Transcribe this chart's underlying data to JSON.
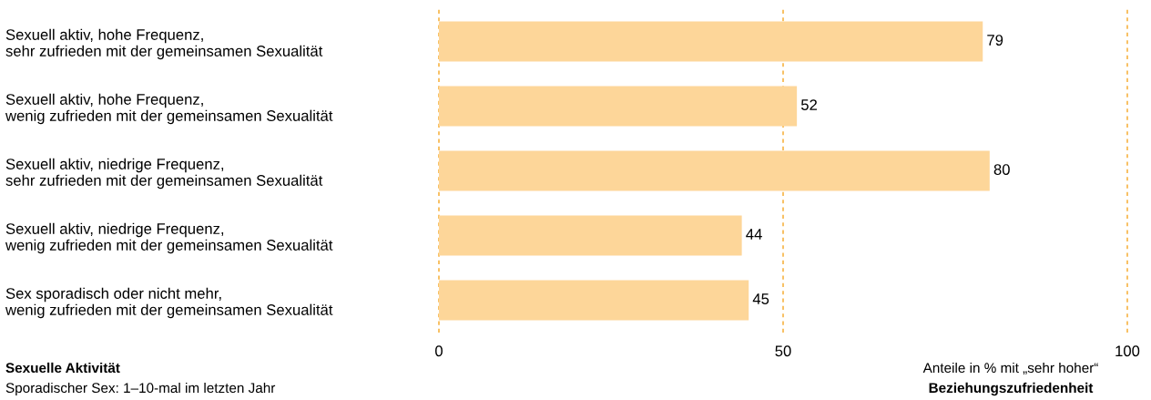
{
  "chart_data": {
    "type": "bar",
    "orientation": "horizontal",
    "categories": [
      "Sexuell aktiv, hohe Frequenz,\nsehr zufrieden mit der gemeinsamen Sexualität",
      "Sexuell aktiv, hohe Frequenz,\nwenig zufrieden mit der gemeinsamen Sexualität",
      "Sexuell aktiv, niedrige Frequenz,\nsehr zufrieden mit der gemeinsamen Sexualität",
      "Sexuell aktiv, niedrige Frequenz,\nwenig zufrieden mit der gemeinsamen Sexualität",
      "Sex sporadisch oder nicht mehr,\nwenig zufrieden mit der gemeinsamen Sexualität"
    ],
    "values": [
      79,
      52,
      80,
      44,
      45
    ],
    "color": "#fdd699",
    "data_labels": true,
    "xlim": [
      0,
      100
    ],
    "xticks": [
      0,
      50,
      100
    ],
    "ref_lines": [
      {
        "axis": "x",
        "value": 0,
        "color": "#f5a623",
        "line_style": "dashed"
      },
      {
        "axis": "x",
        "value": 50,
        "color": "#f5a623",
        "line_style": "dashed"
      },
      {
        "axis": "x",
        "value": 100,
        "color": "#f5a623",
        "line_style": "dashed"
      }
    ],
    "xlabel": "Anteile in % mit „sehr hoher“\nBeziehungszufriedenheit",
    "annotations": [
      "Sexuelle Aktivität",
      "Sporadischer Sex: 1–10-mal im letzten Jahr"
    ]
  }
}
